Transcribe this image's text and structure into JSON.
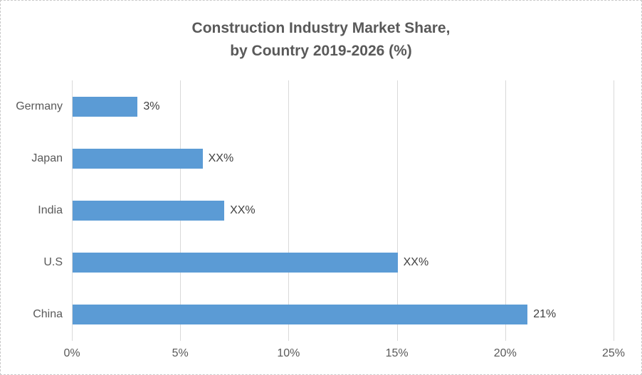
{
  "chart_data": {
    "type": "bar",
    "orientation": "horizontal",
    "title": "Construction Industry Market Share, by Country 2019-2026 (%)",
    "title_lines": [
      "Construction Industry Market Share,",
      "by Country 2019-2026 (%)"
    ],
    "categories": [
      "Germany",
      "Japan",
      "India",
      "U.S",
      "China"
    ],
    "values": [
      3,
      6,
      7,
      15,
      21
    ],
    "data_labels": [
      "3%",
      "XX%",
      "XX%",
      "XX%",
      "21%"
    ],
    "xlabel": "",
    "ylabel": "",
    "xlim": [
      0,
      25
    ],
    "x_ticks": [
      0,
      5,
      10,
      15,
      20,
      25
    ],
    "x_tick_labels": [
      "0%",
      "5%",
      "10%",
      "15%",
      "20%",
      "25%"
    ],
    "grid": true,
    "legend": false,
    "colors": {
      "bar": "#5B9BD5",
      "gridline": "#D9D9D9",
      "title_text": "#595959",
      "axis_text": "#595959",
      "data_label_text": "#404040",
      "background": "#FFFFFF",
      "border": "#C9C9C9"
    }
  }
}
